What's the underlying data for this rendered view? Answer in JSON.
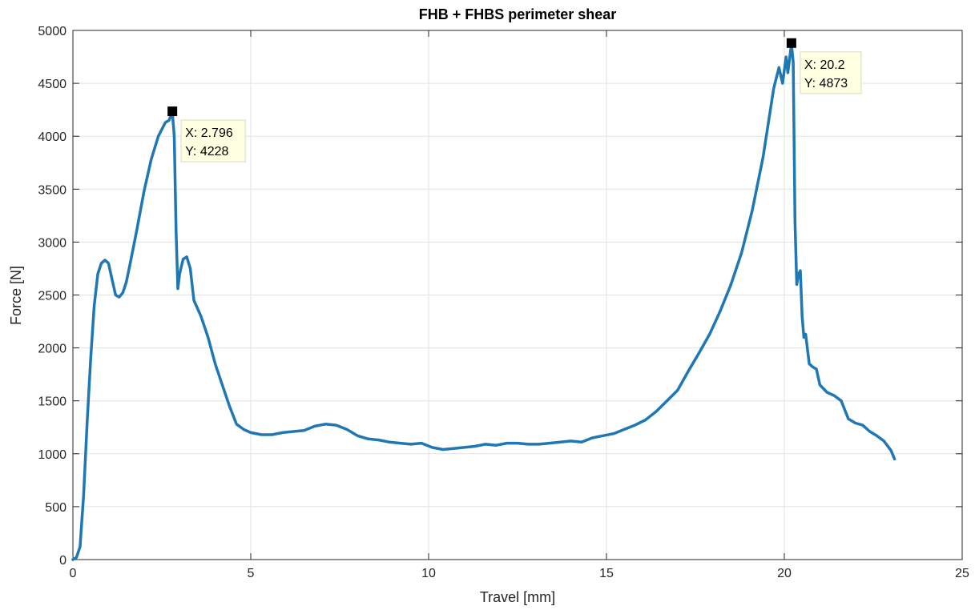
{
  "chart_data": {
    "type": "line",
    "title": "FHB + FHBS perimeter shear",
    "xlabel": "Travel [mm]",
    "ylabel": "Force [N]",
    "xlim": [
      0,
      25
    ],
    "ylim": [
      0,
      5000
    ],
    "xticks": [
      0,
      5,
      10,
      15,
      20,
      25
    ],
    "yticks": [
      0,
      500,
      1000,
      1500,
      2000,
      2500,
      3000,
      3500,
      4000,
      4500,
      5000
    ],
    "grid": true,
    "colors": {
      "line": "#1f77b4",
      "grid": "#e2e2e2",
      "axis": "#262626",
      "datatip_bg": "#ffffe1"
    },
    "series": [
      {
        "x": [
          0,
          0.1,
          0.2,
          0.3,
          0.4,
          0.5,
          0.6,
          0.7,
          0.8,
          0.9,
          1.0,
          1.1,
          1.2,
          1.3,
          1.4,
          1.5,
          1.6,
          1.7,
          1.8,
          2.0,
          2.2,
          2.4,
          2.6,
          2.7,
          2.796,
          2.85,
          2.9,
          2.95,
          3.0,
          3.1,
          3.2,
          3.3,
          3.4,
          3.6,
          3.8,
          4.0,
          4.2,
          4.4,
          4.6,
          4.8,
          5.0,
          5.3,
          5.6,
          5.9,
          6.2,
          6.5,
          6.8,
          7.1,
          7.4,
          7.7,
          8.0,
          8.3,
          8.6,
          8.9,
          9.2,
          9.5,
          9.8,
          10.1,
          10.4,
          10.7,
          11.0,
          11.3,
          11.6,
          11.9,
          12.2,
          12.5,
          12.8,
          13.1,
          13.4,
          13.7,
          14.0,
          14.3,
          14.6,
          14.9,
          15.2,
          15.5,
          15.8,
          16.1,
          16.4,
          16.7,
          17.0,
          17.3,
          17.6,
          17.9,
          18.2,
          18.5,
          18.8,
          19.1,
          19.4,
          19.7,
          19.85,
          19.95,
          20.05,
          20.1,
          20.2,
          20.25,
          20.3,
          20.35,
          20.4,
          20.45,
          20.5,
          20.55,
          20.6,
          20.7,
          20.8,
          20.9,
          21.0,
          21.2,
          21.4,
          21.6,
          21.8,
          22.0,
          22.2,
          22.4,
          22.6,
          22.8,
          23.0,
          23.1
        ],
        "y": [
          0,
          20,
          120,
          600,
          1300,
          1900,
          2400,
          2700,
          2800,
          2830,
          2800,
          2650,
          2500,
          2480,
          2520,
          2620,
          2780,
          2950,
          3120,
          3480,
          3780,
          4000,
          4130,
          4150,
          4228,
          4000,
          3100,
          2560,
          2700,
          2840,
          2860,
          2750,
          2450,
          2300,
          2100,
          1850,
          1650,
          1450,
          1280,
          1230,
          1200,
          1180,
          1180,
          1200,
          1210,
          1220,
          1260,
          1280,
          1270,
          1230,
          1170,
          1140,
          1130,
          1110,
          1100,
          1090,
          1100,
          1060,
          1040,
          1050,
          1060,
          1070,
          1090,
          1080,
          1100,
          1100,
          1090,
          1090,
          1100,
          1110,
          1120,
          1110,
          1150,
          1170,
          1190,
          1230,
          1270,
          1320,
          1400,
          1500,
          1600,
          1780,
          1950,
          2130,
          2350,
          2600,
          2900,
          3300,
          3800,
          4450,
          4650,
          4500,
          4750,
          4600,
          4873,
          4700,
          3200,
          2600,
          2700,
          2730,
          2300,
          2100,
          2130,
          1850,
          1820,
          1800,
          1650,
          1580,
          1550,
          1500,
          1330,
          1290,
          1270,
          1210,
          1170,
          1120,
          1030,
          950
        ]
      }
    ],
    "annotations": [
      {
        "label_x": "X: 2.796",
        "label_y": "Y: 4228",
        "x": 2.796,
        "y": 4228
      },
      {
        "label_x": "X: 20.2",
        "label_y": "Y: 4873",
        "x": 20.2,
        "y": 4873
      }
    ]
  }
}
